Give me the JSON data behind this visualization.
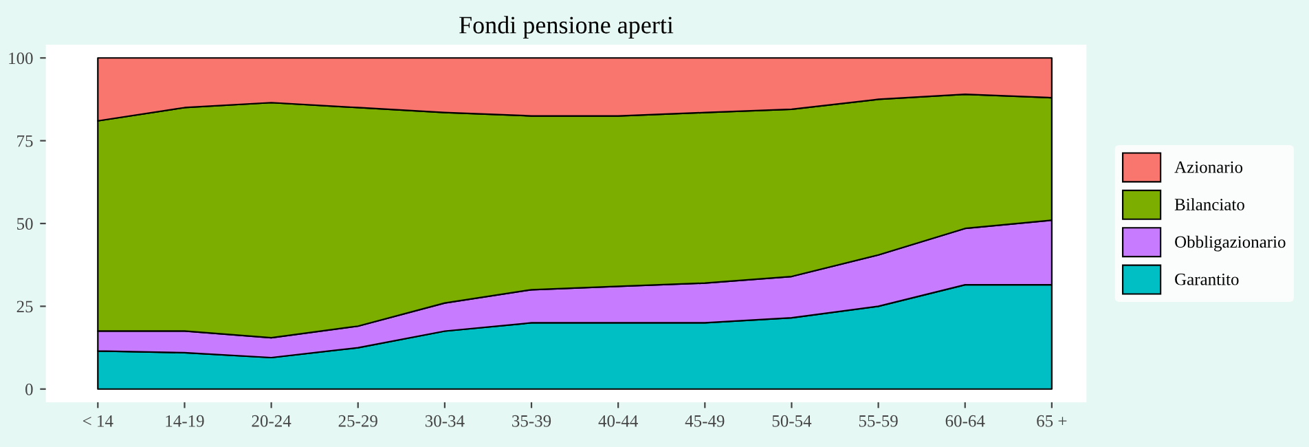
{
  "chart_data": {
    "type": "area",
    "title": "Fondi pensione aperti",
    "stacked": true,
    "categories": [
      "< 14",
      "14-19",
      "20-24",
      "25-29",
      "30-34",
      "35-39",
      "40-44",
      "45-49",
      "50-54",
      "55-59",
      "60-64",
      "65 +"
    ],
    "series": [
      {
        "name": "Garantito",
        "color": "#00bfc4",
        "values": [
          11.5,
          11,
          9.5,
          12.5,
          17.5,
          20,
          20,
          20,
          21.5,
          25,
          31.5,
          31.5
        ]
      },
      {
        "name": "Obbligazionario",
        "color": "#c77cff",
        "values": [
          6,
          6.5,
          6,
          6.5,
          8.5,
          10,
          11,
          12,
          12.5,
          15.5,
          17,
          19.5
        ]
      },
      {
        "name": "Bilanciato",
        "color": "#7cae00",
        "values": [
          63.5,
          67.5,
          71,
          66,
          57.5,
          52.5,
          51.5,
          51.5,
          50.5,
          47,
          40.5,
          37
        ]
      },
      {
        "name": "Azionario",
        "color": "#f8766d",
        "values": [
          19,
          15,
          13.5,
          15,
          16.5,
          17.5,
          17.5,
          16.5,
          15.5,
          12.5,
          11,
          12
        ]
      }
    ],
    "ylim": [
      -4,
      104
    ],
    "yticks": [
      0,
      25,
      50,
      75,
      100
    ],
    "legend": "right"
  }
}
